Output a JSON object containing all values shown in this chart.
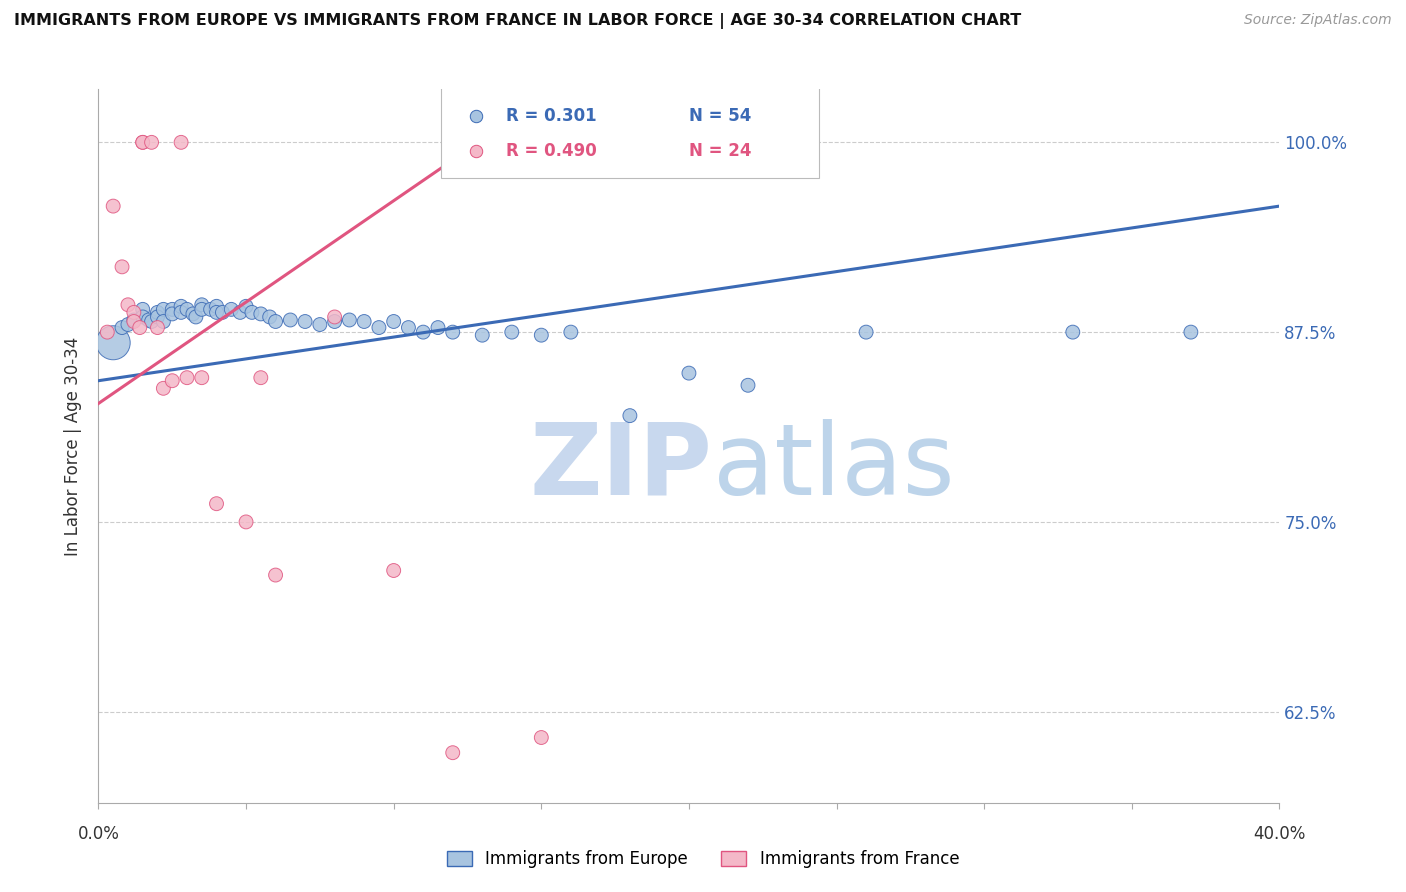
{
  "title": "IMMIGRANTS FROM EUROPE VS IMMIGRANTS FROM FRANCE IN LABOR FORCE | AGE 30-34 CORRELATION CHART",
  "source": "Source: ZipAtlas.com",
  "ylabel": "In Labor Force | Age 30-34",
  "ytick_labels": [
    "100.0%",
    "87.5%",
    "75.0%",
    "62.5%"
  ],
  "ytick_values": [
    1.0,
    0.875,
    0.75,
    0.625
  ],
  "xlim": [
    0.0,
    0.4
  ],
  "ylim": [
    0.565,
    1.035
  ],
  "blue_R": 0.301,
  "blue_N": 54,
  "pink_R": 0.49,
  "pink_N": 24,
  "blue_color": "#A8C4E0",
  "pink_color": "#F4B8C8",
  "blue_line_color": "#3B6AB5",
  "pink_line_color": "#E05580",
  "legend_blue_label": "Immigrants from Europe",
  "legend_pink_label": "Immigrants from France",
  "watermark_zip": "ZIP",
  "watermark_atlas": "atlas",
  "blue_scatter_x": [
    0.005,
    0.008,
    0.01,
    0.012,
    0.015,
    0.015,
    0.017,
    0.018,
    0.02,
    0.02,
    0.022,
    0.022,
    0.025,
    0.025,
    0.028,
    0.028,
    0.03,
    0.032,
    0.033,
    0.035,
    0.035,
    0.038,
    0.04,
    0.04,
    0.042,
    0.045,
    0.048,
    0.05,
    0.052,
    0.055,
    0.058,
    0.06,
    0.065,
    0.07,
    0.075,
    0.08,
    0.085,
    0.09,
    0.095,
    0.1,
    0.105,
    0.11,
    0.115,
    0.12,
    0.13,
    0.14,
    0.15,
    0.16,
    0.18,
    0.2,
    0.22,
    0.26,
    0.33,
    0.37
  ],
  "blue_scatter_y": [
    0.868,
    0.878,
    0.88,
    0.883,
    0.89,
    0.885,
    0.883,
    0.882,
    0.888,
    0.885,
    0.89,
    0.882,
    0.89,
    0.887,
    0.892,
    0.888,
    0.89,
    0.887,
    0.885,
    0.893,
    0.89,
    0.89,
    0.892,
    0.888,
    0.888,
    0.89,
    0.888,
    0.892,
    0.888,
    0.887,
    0.885,
    0.882,
    0.883,
    0.882,
    0.88,
    0.882,
    0.883,
    0.882,
    0.878,
    0.882,
    0.878,
    0.875,
    0.878,
    0.875,
    0.873,
    0.875,
    0.873,
    0.875,
    0.82,
    0.848,
    0.84,
    0.875,
    0.875,
    0.875
  ],
  "blue_scatter_sizes": [
    600,
    100,
    100,
    100,
    100,
    100,
    100,
    100,
    100,
    100,
    100,
    100,
    100,
    100,
    100,
    100,
    100,
    100,
    100,
    100,
    100,
    100,
    100,
    100,
    100,
    100,
    100,
    100,
    100,
    100,
    100,
    100,
    100,
    100,
    100,
    100,
    100,
    100,
    100,
    100,
    100,
    100,
    100,
    100,
    100,
    100,
    100,
    100,
    100,
    100,
    100,
    100,
    100,
    100
  ],
  "pink_scatter_x": [
    0.003,
    0.005,
    0.008,
    0.01,
    0.012,
    0.012,
    0.014,
    0.015,
    0.015,
    0.018,
    0.02,
    0.022,
    0.025,
    0.028,
    0.03,
    0.035,
    0.04,
    0.05,
    0.055,
    0.06,
    0.08,
    0.1,
    0.12,
    0.15
  ],
  "pink_scatter_y": [
    0.875,
    0.958,
    0.918,
    0.893,
    0.888,
    0.882,
    0.878,
    1.0,
    1.0,
    1.0,
    0.878,
    0.838,
    0.843,
    1.0,
    0.845,
    0.845,
    0.762,
    0.75,
    0.845,
    0.715,
    0.885,
    0.718,
    0.598,
    0.608
  ],
  "pink_scatter_sizes": [
    100,
    100,
    100,
    100,
    100,
    100,
    100,
    100,
    100,
    100,
    100,
    100,
    100,
    100,
    100,
    100,
    100,
    100,
    100,
    100,
    100,
    100,
    100,
    100
  ],
  "blue_line_x": [
    0.0,
    0.4
  ],
  "blue_line_y": [
    0.843,
    0.958
  ],
  "pink_line_x": [
    0.0,
    0.155
  ],
  "pink_line_y": [
    0.828,
    1.035
  ]
}
